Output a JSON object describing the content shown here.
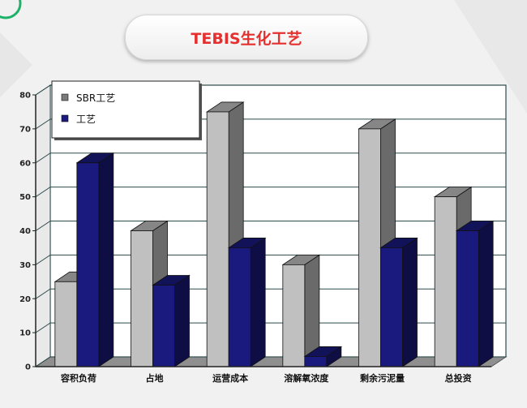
{
  "slide": {
    "title": "TEBIS生化工艺",
    "accent_color": "#1cb26a",
    "title_color": "#e5302f"
  },
  "chart_data": {
    "type": "bar",
    "style": "3d-clustered",
    "title": "",
    "xlabel": "",
    "ylabel": "",
    "ylim": [
      0,
      80
    ],
    "yticks": [
      0,
      10,
      20,
      30,
      40,
      50,
      60,
      70,
      80
    ],
    "grid": true,
    "legend_position": "top-left",
    "categories": [
      "容积负荷",
      "占地",
      "运营成本",
      "溶解氧浓度",
      "剩余污泥量",
      "总投资"
    ],
    "series": [
      {
        "name": "SBR工艺",
        "color": "#c0c0c0",
        "values": [
          25,
          40,
          75,
          30,
          70,
          50
        ]
      },
      {
        "name": "工艺",
        "color": "#1a1a7e",
        "values": [
          60,
          24,
          35,
          3,
          35,
          40
        ]
      }
    ]
  }
}
